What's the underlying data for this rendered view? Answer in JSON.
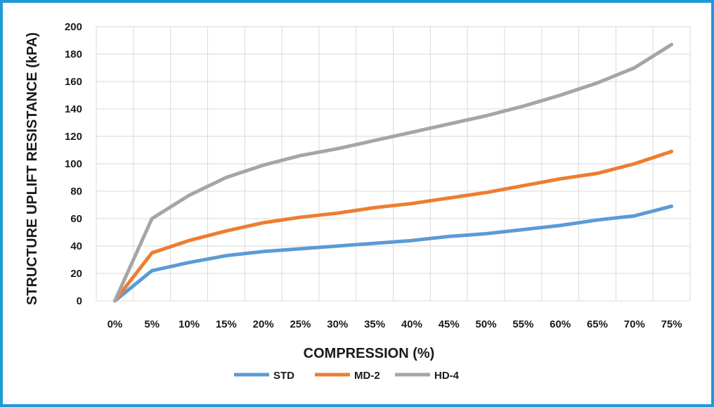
{
  "chart_data": {
    "type": "line",
    "title": "",
    "xlabel": "COMPRESSION (%)",
    "ylabel": "STRUCTURE UPLIFT RESISTANCE (kPA)",
    "ylim": [
      0,
      200
    ],
    "yticks": [
      "0",
      "20",
      "40",
      "60",
      "80",
      "100",
      "120",
      "140",
      "160",
      "180",
      "200"
    ],
    "categories": [
      "0%",
      "5%",
      "10%",
      "15%",
      "20%",
      "25%",
      "30%",
      "35%",
      "40%",
      "45%",
      "50%",
      "55%",
      "60%",
      "65%",
      "70%",
      "75%"
    ],
    "grid": true,
    "legend_position": "bottom",
    "series": [
      {
        "name": "STD",
        "color": "#5b9bd5",
        "values": [
          0,
          22,
          28,
          33,
          36,
          38,
          40,
          42,
          44,
          47,
          49,
          52,
          55,
          59,
          62,
          69
        ]
      },
      {
        "name": "MD-2",
        "color": "#ed7d31",
        "values": [
          0,
          35,
          44,
          51,
          57,
          61,
          64,
          68,
          71,
          75,
          79,
          84,
          89,
          93,
          100,
          109
        ]
      },
      {
        "name": "HD-4",
        "color": "#a5a5a5",
        "values": [
          0,
          60,
          77,
          90,
          99,
          106,
          111,
          117,
          123,
          129,
          135,
          142,
          150,
          159,
          170,
          187
        ]
      }
    ]
  }
}
